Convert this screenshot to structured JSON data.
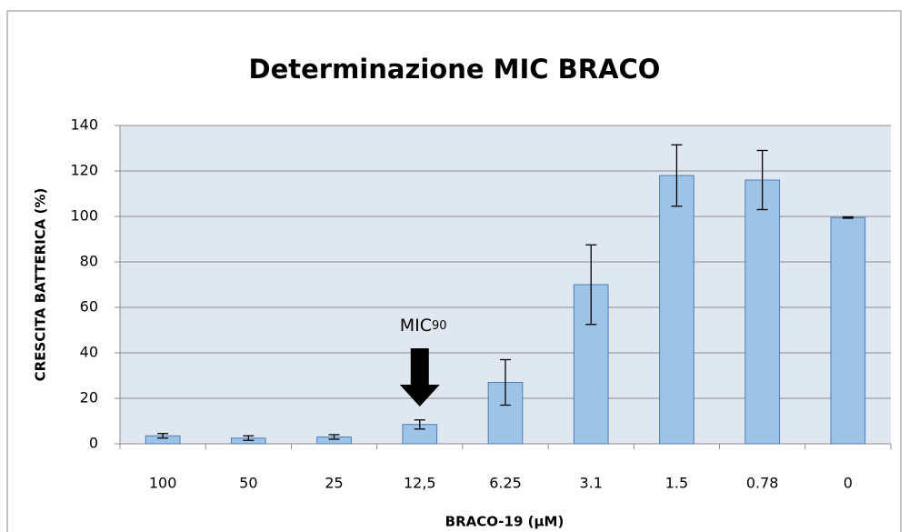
{
  "chart_data": {
    "type": "bar",
    "title": "Determinazione MIC BRACO",
    "x_label": "BRACO-19 (µM)",
    "y_label": "CRESCITA BATTERICA  (%)",
    "categories": [
      "100",
      "50",
      "25",
      "12,5",
      "6.25",
      "3.1",
      "1.5",
      "0.78",
      "0"
    ],
    "values": [
      3.5,
      2.5,
      3,
      8.5,
      27,
      70,
      118,
      116,
      99.5
    ],
    "errors": [
      1,
      1,
      1,
      2,
      10,
      17.5,
      13.5,
      13,
      0.3
    ],
    "color": "#9dc3e6",
    "ylim": [
      0,
      140
    ],
    "yticks": [
      0,
      20,
      40,
      60,
      80,
      100,
      120,
      140
    ],
    "grid": true,
    "annotation": {
      "text": "MIC",
      "subscript": "90"
    }
  }
}
